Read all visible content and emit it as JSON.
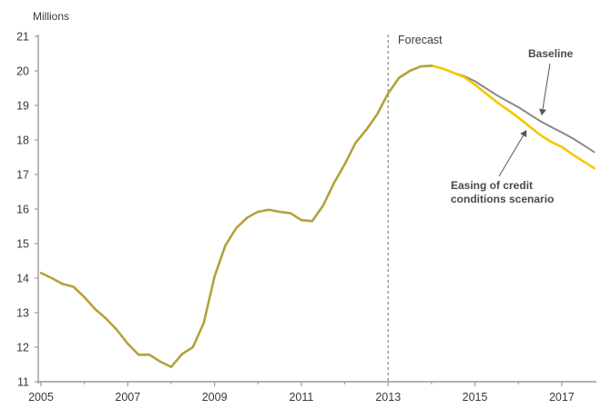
{
  "chart_data": {
    "type": "line",
    "ylabel": "Millions",
    "xlim": [
      2005,
      2017.8
    ],
    "ylim": [
      11,
      21
    ],
    "x_ticks": [
      "2005",
      "2007",
      "2009",
      "2011",
      "2013",
      "2015",
      "2017"
    ],
    "x_tick_values": [
      2005,
      2007,
      2009,
      2011,
      2013,
      2015,
      2017
    ],
    "y_ticks": [
      "11",
      "12",
      "13",
      "14",
      "15",
      "16",
      "17",
      "18",
      "19",
      "20",
      "21"
    ],
    "y_tick_values": [
      11,
      12,
      13,
      14,
      15,
      16,
      17,
      18,
      19,
      20,
      21
    ],
    "forecast_line": {
      "x": 2013,
      "label": "Forecast"
    },
    "series": [
      {
        "name": "Baseline",
        "color": "#8a8a8a",
        "x": [
          2005.0,
          2005.25,
          2005.5,
          2005.75,
          2006.0,
          2006.25,
          2006.5,
          2006.75,
          2007.0,
          2007.25,
          2007.5,
          2007.75,
          2008.0,
          2008.25,
          2008.5,
          2008.75,
          2009.0,
          2009.25,
          2009.5,
          2009.75,
          2010.0,
          2010.25,
          2010.5,
          2010.75,
          2011.0,
          2011.25,
          2011.5,
          2011.75,
          2012.0,
          2012.25,
          2012.5,
          2012.75,
          2013.0,
          2013.25,
          2013.5,
          2013.75,
          2014.0,
          2014.25,
          2014.5,
          2014.75,
          2015.0,
          2015.25,
          2015.5,
          2015.75,
          2016.0,
          2016.25,
          2016.5,
          2016.75,
          2017.0,
          2017.25,
          2017.5,
          2017.75
        ],
        "values": [
          14.15,
          14.0,
          13.83,
          13.75,
          13.45,
          13.1,
          12.83,
          12.5,
          12.1,
          11.78,
          11.78,
          11.58,
          11.43,
          11.8,
          12.0,
          12.7,
          14.05,
          14.95,
          15.45,
          15.75,
          15.92,
          15.98,
          15.92,
          15.88,
          15.68,
          15.65,
          16.1,
          16.75,
          17.3,
          17.92,
          18.3,
          18.75,
          19.35,
          19.8,
          20.0,
          20.13,
          20.15,
          20.07,
          19.95,
          19.85,
          19.7,
          19.5,
          19.3,
          19.12,
          18.95,
          18.75,
          18.55,
          18.38,
          18.22,
          18.05,
          17.85,
          17.65
        ]
      },
      {
        "name": "Easing of credit conditions scenario",
        "color": "#f5c800",
        "x": [
          2014.0,
          2014.25,
          2014.5,
          2014.75,
          2015.0,
          2015.25,
          2015.5,
          2015.75,
          2016.0,
          2016.25,
          2016.5,
          2016.75,
          2017.0,
          2017.25,
          2017.5,
          2017.75
        ],
        "values": [
          20.15,
          20.07,
          19.95,
          19.82,
          19.6,
          19.35,
          19.1,
          18.88,
          18.65,
          18.4,
          18.15,
          17.95,
          17.8,
          17.58,
          17.38,
          17.18
        ]
      }
    ],
    "overlap_color": "#b2a23c",
    "annotations": [
      {
        "text": "Baseline",
        "series": "Baseline",
        "point_x": 2016.5
      },
      {
        "lines": [
          "Easing of credit",
          "conditions scenario"
        ],
        "series": "Easing of credit conditions scenario",
        "point_x": 2016.2
      }
    ]
  }
}
